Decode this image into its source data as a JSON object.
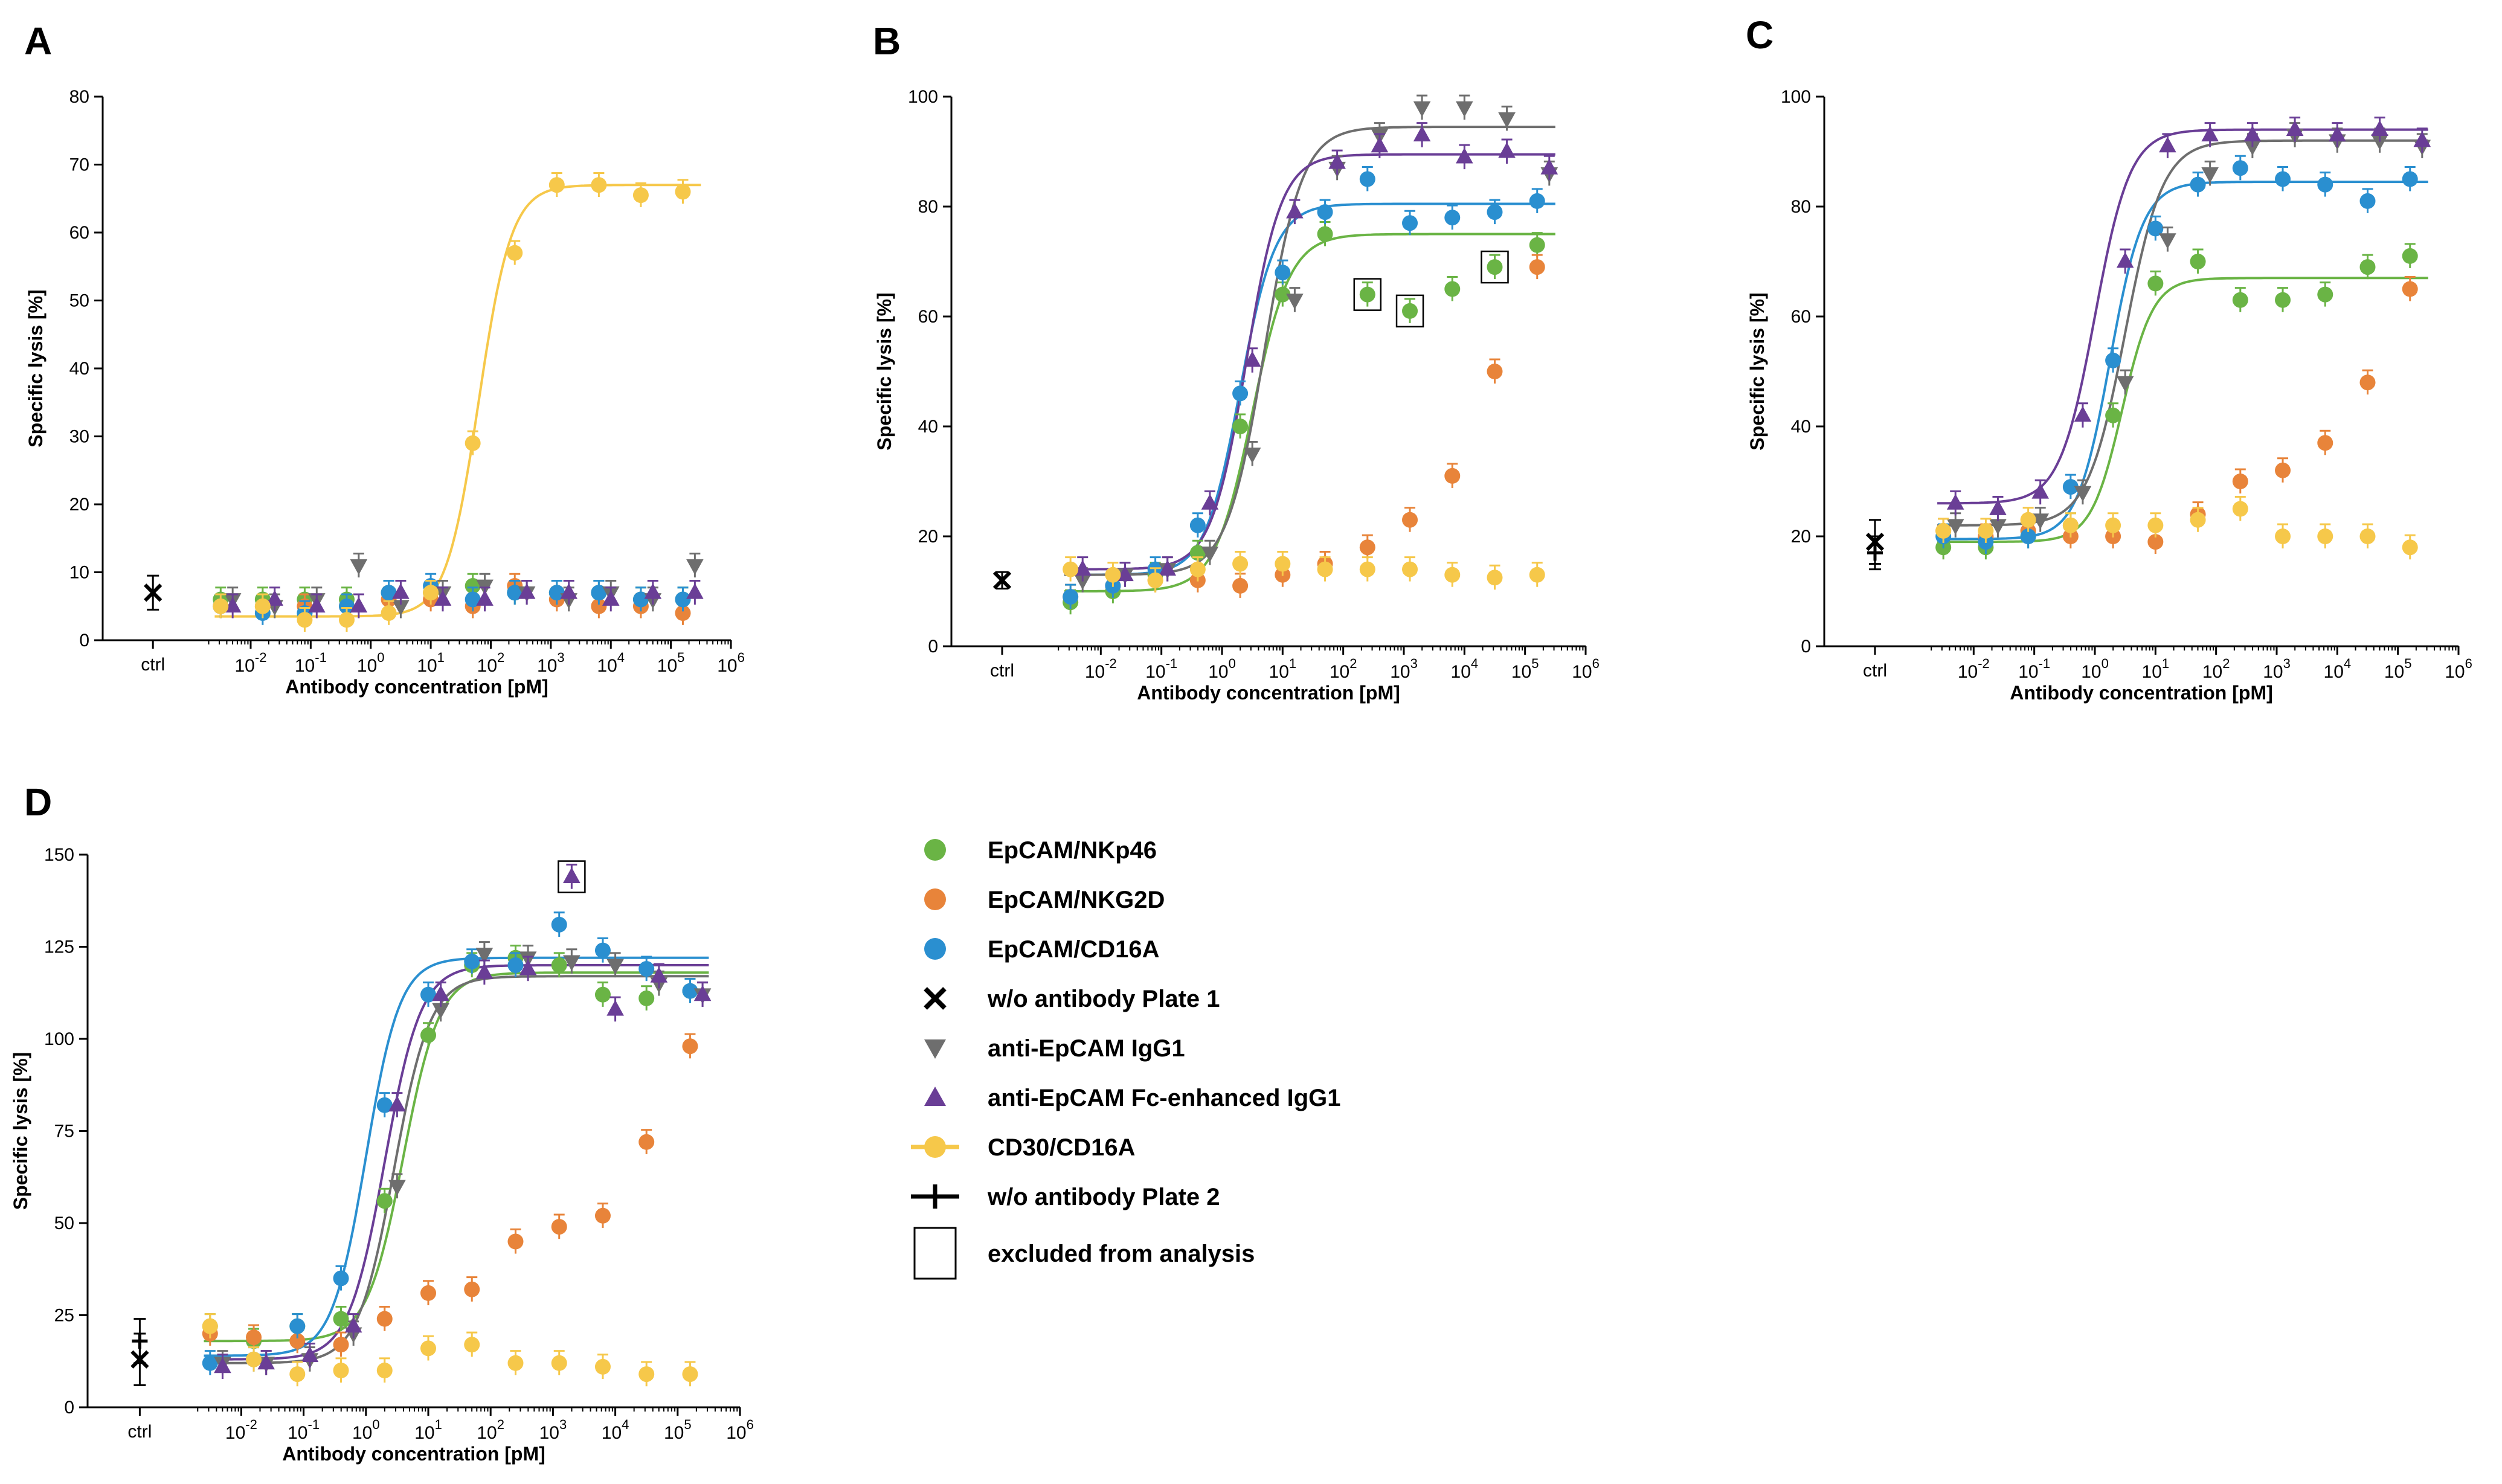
{
  "colors": {
    "nkp46": "#6ab445",
    "nkg2d": "#e8843a",
    "cd16a": "#2a8fd0",
    "igg1": "#6e6e6e",
    "fcenh": "#6a3e96",
    "cd30": "#f6c84a",
    "black": "#000000"
  },
  "legend": [
    {
      "label": "EpCAM/NKp46",
      "marker": "circle",
      "color": "nkp46"
    },
    {
      "label": "EpCAM/NKG2D",
      "marker": "circle",
      "color": "nkg2d"
    },
    {
      "label": "EpCAM/CD16A",
      "marker": "circle",
      "color": "cd16a"
    },
    {
      "label": "w/o antibody Plate 1",
      "marker": "x",
      "color": "black"
    },
    {
      "label": "anti-EpCAM IgG1",
      "marker": "tri-down",
      "color": "igg1"
    },
    {
      "label": "anti-EpCAM Fc-enhanced IgG1",
      "marker": "tri-up",
      "color": "fcenh"
    },
    {
      "label": "CD30/CD16A",
      "marker": "line-circle",
      "color": "cd30"
    },
    {
      "label": "w/o antibody Plate 2",
      "marker": "line-plus",
      "color": "black"
    },
    {
      "label": "excluded from analysis",
      "marker": "box",
      "color": "black"
    }
  ],
  "chart_data": [
    {
      "panel": "A",
      "type": "scatter",
      "xlabel": "Antibody concentration [pM]",
      "ylabel": "Specific lysis [%]",
      "ylim": [
        0,
        80
      ],
      "yticks": [
        0,
        10,
        20,
        30,
        40,
        50,
        60,
        70,
        80
      ],
      "xlim_log": [
        -3,
        6
      ],
      "ctrl_label": "ctrl",
      "ctrl": [
        {
          "marker": "x",
          "color": "black",
          "y": 7,
          "err": 2.5
        }
      ],
      "fits": [
        {
          "color": "cd30",
          "bottom": 3.5,
          "top": 67,
          "logec50": 1.8,
          "hill": 1.6
        }
      ],
      "series": [
        {
          "name": "EpCAM/NKp46",
          "marker": "circle",
          "color": "nkp46",
          "x": [
            -2.5,
            -1.8,
            -1.1,
            -0.4,
            0.3,
            1.0,
            1.7,
            2.4,
            3.1,
            3.8,
            4.5,
            5.2
          ],
          "y": [
            6,
            6,
            6,
            6,
            7,
            7,
            8,
            7,
            7,
            7,
            6,
            6
          ]
        },
        {
          "name": "EpCAM/NKG2D",
          "marker": "circle",
          "color": "nkg2d",
          "x": [
            -2.5,
            -1.8,
            -1.1,
            -0.4,
            0.3,
            1.0,
            1.7,
            2.4,
            3.1,
            3.8,
            4.5,
            5.2
          ],
          "y": [
            5,
            5,
            5,
            5,
            6,
            6,
            5,
            8,
            6,
            5,
            5,
            4
          ]
        },
        {
          "name": "EpCAM/CD16A",
          "marker": "circle",
          "color": "cd16a",
          "x": [
            -2.5,
            -1.8,
            -1.1,
            -0.4,
            0.3,
            1.0,
            1.7,
            2.4,
            3.1,
            3.8,
            4.5,
            5.2
          ],
          "y": [
            5,
            4,
            4,
            5,
            7,
            8,
            6,
            7,
            7,
            7,
            6,
            6
          ]
        },
        {
          "name": "anti-EpCAM IgG1",
          "marker": "tri-down",
          "color": "igg1",
          "x": [
            -2.3,
            -1.6,
            -0.9,
            -0.2,
            0.5,
            1.2,
            1.9,
            2.6,
            3.3,
            4.0,
            4.7,
            5.4
          ],
          "y": [
            6,
            5,
            6,
            11,
            5,
            7,
            8,
            7,
            6,
            7,
            6,
            11
          ]
        },
        {
          "name": "anti-EpCAM Fc-enhanced IgG1",
          "marker": "tri-up",
          "color": "fcenh",
          "x": [
            -2.3,
            -1.6,
            -0.9,
            -0.2,
            0.5,
            1.2,
            1.9,
            2.6,
            3.3,
            4.0,
            4.7,
            5.4
          ],
          "y": [
            5,
            6,
            5,
            5,
            7,
            6,
            6,
            7,
            7,
            6,
            7,
            7
          ]
        },
        {
          "name": "CD30/CD16A",
          "marker": "circle",
          "color": "cd30",
          "x": [
            -2.5,
            -1.8,
            -1.1,
            -0.4,
            0.3,
            1.0,
            1.7,
            2.4,
            3.1,
            3.8,
            4.5,
            5.2
          ],
          "y": [
            5,
            5,
            3,
            3,
            4,
            7,
            29,
            57,
            67,
            67,
            65.5,
            66
          ]
        }
      ],
      "excluded": []
    },
    {
      "panel": "B",
      "type": "scatter",
      "xlabel": "Antibody concentration [pM]",
      "ylabel": "Specific lysis [%]",
      "ylim": [
        0,
        100
      ],
      "yticks": [
        0,
        20,
        40,
        60,
        80,
        100
      ],
      "xlim_log": [
        -3,
        6
      ],
      "ctrl_label": "ctrl",
      "ctrl": [
        {
          "marker": "x",
          "color": "black",
          "y": 12,
          "err": 1.5
        }
      ],
      "fits": [
        {
          "color": "nkp46",
          "bottom": 10,
          "top": 75,
          "logec50": 0.5,
          "hill": 1.4
        },
        {
          "color": "cd16a",
          "bottom": 13,
          "top": 80.5,
          "logec50": 0.3,
          "hill": 1.5
        },
        {
          "color": "igg1",
          "bottom": 13,
          "top": 94.5,
          "logec50": 0.7,
          "hill": 1.4
        },
        {
          "color": "fcenh",
          "bottom": 14,
          "top": 89.5,
          "logec50": 0.4,
          "hill": 1.5
        }
      ],
      "series": [
        {
          "name": "EpCAM/NKp46",
          "marker": "circle",
          "color": "nkp46",
          "x": [
            -2.5,
            -1.8,
            -1.1,
            -0.4,
            0.3,
            1.0,
            1.7,
            2.4,
            3.1,
            3.8,
            4.5,
            5.2
          ],
          "y": [
            8,
            10,
            13,
            17,
            40,
            64,
            75,
            64,
            61,
            65,
            69,
            73
          ]
        },
        {
          "name": "EpCAM/NKG2D",
          "marker": "circle",
          "color": "nkg2d",
          "x": [
            -2.5,
            -1.8,
            -1.1,
            -0.4,
            0.3,
            1.0,
            1.7,
            2.4,
            3.1,
            3.8,
            4.5,
            5.2
          ],
          "y": [
            9,
            11,
            12,
            12,
            11,
            13,
            15,
            18,
            23,
            31,
            50,
            69
          ]
        },
        {
          "name": "EpCAM/CD16A",
          "marker": "circle",
          "color": "cd16a",
          "x": [
            -2.5,
            -1.8,
            -1.1,
            -0.4,
            0.3,
            1.0,
            1.7,
            2.4,
            3.1,
            3.8,
            4.5,
            5.2
          ],
          "y": [
            9,
            11,
            14,
            22,
            46,
            68,
            79,
            85,
            77,
            78,
            79,
            81
          ]
        },
        {
          "name": "anti-EpCAM IgG1",
          "marker": "tri-down",
          "color": "igg1",
          "x": [
            -2.3,
            -1.6,
            -0.9,
            -0.2,
            0.5,
            1.2,
            1.9,
            2.6,
            3.3,
            4.0,
            4.7,
            5.4
          ],
          "y": [
            12,
            13,
            14,
            17,
            35,
            63,
            87,
            93,
            98,
            98,
            96,
            86
          ]
        },
        {
          "name": "anti-EpCAM Fc-enhanced IgG1",
          "marker": "tri-up",
          "color": "fcenh",
          "x": [
            -2.3,
            -1.6,
            -0.9,
            -0.2,
            0.5,
            1.2,
            1.9,
            2.6,
            3.3,
            4.0,
            4.7,
            5.4
          ],
          "y": [
            14,
            13,
            14,
            26,
            52,
            79,
            88,
            91,
            93,
            89,
            90,
            87
          ]
        },
        {
          "name": "CD30/CD16A",
          "marker": "circle",
          "color": "cd30",
          "x": [
            -2.5,
            -1.8,
            -1.1,
            -0.4,
            0.3,
            1.0,
            1.7,
            2.4,
            3.1,
            3.8,
            4.5,
            5.2
          ],
          "y": [
            14,
            13,
            12,
            14,
            15,
            15,
            14,
            14,
            14,
            13,
            12.5,
            13
          ]
        }
      ],
      "excluded": [
        {
          "x": 2.4,
          "y": 64,
          "color": "nkp46"
        },
        {
          "x": 3.1,
          "y": 61,
          "color": "nkp46"
        },
        {
          "x": 4.5,
          "y": 69,
          "color": "nkp46"
        }
      ]
    },
    {
      "panel": "C",
      "type": "scatter",
      "xlabel": "Antibody concentration [pM]",
      "ylabel": "Specific lysis [%]",
      "ylim": [
        0,
        100
      ],
      "yticks": [
        0,
        20,
        40,
        60,
        80,
        100
      ],
      "xlim_log": [
        -3,
        6
      ],
      "ctrl_label": "ctrl",
      "ctrl": [
        {
          "marker": "x",
          "color": "black",
          "y": 19,
          "err": 4
        },
        {
          "marker": "plus",
          "color": "black",
          "y": 17,
          "err": 3
        }
      ],
      "fits": [
        {
          "color": "nkp46",
          "bottom": 19,
          "top": 67,
          "logec50": 0.45,
          "hill": 1.7
        },
        {
          "color": "cd16a",
          "bottom": 19.5,
          "top": 84.5,
          "logec50": 0.25,
          "hill": 1.6
        },
        {
          "color": "igg1",
          "bottom": 22,
          "top": 92,
          "logec50": 0.5,
          "hill": 1.4
        },
        {
          "color": "fcenh",
          "bottom": 26,
          "top": 94,
          "logec50": 0.0,
          "hill": 1.5
        }
      ],
      "series": [
        {
          "name": "EpCAM/NKp46",
          "marker": "circle",
          "color": "nkp46",
          "x": [
            -2.5,
            -1.8,
            -1.1,
            -0.4,
            0.3,
            1.0,
            1.7,
            2.4,
            3.1,
            3.8,
            4.5,
            5.2
          ],
          "y": [
            18,
            18,
            20,
            22,
            42,
            66,
            70,
            63,
            63,
            64,
            69,
            71
          ]
        },
        {
          "name": "EpCAM/NKG2D",
          "marker": "circle",
          "color": "nkg2d",
          "x": [
            -2.5,
            -1.8,
            -1.1,
            -0.4,
            0.3,
            1.0,
            1.7,
            2.4,
            3.1,
            3.8,
            4.5,
            5.2
          ],
          "y": [
            21,
            20,
            21,
            20,
            20,
            19,
            24,
            30,
            32,
            37,
            48,
            65
          ]
        },
        {
          "name": "EpCAM/CD16A",
          "marker": "circle",
          "color": "cd16a",
          "x": [
            -2.5,
            -1.8,
            -1.1,
            -0.4,
            0.3,
            1.0,
            1.7,
            2.4,
            3.1,
            3.8,
            4.5,
            5.2
          ],
          "y": [
            20,
            19,
            20,
            29,
            52,
            76,
            84,
            87,
            85,
            84,
            81,
            85
          ]
        },
        {
          "name": "anti-EpCAM IgG1",
          "marker": "tri-down",
          "color": "igg1",
          "x": [
            -2.3,
            -1.6,
            -0.9,
            -0.2,
            0.5,
            1.2,
            1.9,
            2.6,
            3.3,
            4.0,
            4.7,
            5.4
          ],
          "y": [
            22,
            22,
            23,
            28,
            48,
            74,
            86,
            91,
            93,
            92,
            92,
            91
          ]
        },
        {
          "name": "anti-EpCAM Fc-enhanced IgG1",
          "marker": "tri-up",
          "color": "fcenh",
          "x": [
            -2.3,
            -1.6,
            -0.9,
            -0.2,
            0.5,
            1.2,
            1.9,
            2.6,
            3.3,
            4.0,
            4.7,
            5.4
          ],
          "y": [
            26,
            25,
            28,
            42,
            70,
            91,
            93,
            93,
            94,
            93,
            94,
            92
          ]
        },
        {
          "name": "CD30/CD16A",
          "marker": "circle",
          "color": "cd30",
          "x": [
            -2.5,
            -1.8,
            -1.1,
            -0.4,
            0.3,
            1.0,
            1.7,
            2.4,
            3.1,
            3.8,
            4.5,
            5.2
          ],
          "y": [
            21,
            21,
            23,
            22,
            22,
            22,
            23,
            25,
            20,
            20,
            20,
            18
          ]
        }
      ],
      "excluded": []
    },
    {
      "panel": "D",
      "type": "scatter",
      "xlabel": "Antibody concentration [pM]",
      "ylabel": "Specific lysis [%]",
      "ylim": [
        0,
        150
      ],
      "yticks": [
        0,
        25,
        50,
        75,
        100,
        125,
        150
      ],
      "xlim_log": [
        -3,
        6
      ],
      "ctrl_label": "ctrl",
      "ctrl": [
        {
          "marker": "x",
          "color": "black",
          "y": 13,
          "err": 7
        },
        {
          "marker": "plus",
          "color": "black",
          "y": 18,
          "err": 6
        }
      ],
      "fits": [
        {
          "color": "nkp46",
          "bottom": 18,
          "top": 118,
          "logec50": 0.6,
          "hill": 1.5
        },
        {
          "color": "cd16a",
          "bottom": 14,
          "top": 122,
          "logec50": 0.0,
          "hill": 1.6
        },
        {
          "color": "igg1",
          "bottom": 12,
          "top": 117,
          "logec50": 0.45,
          "hill": 1.5
        },
        {
          "color": "fcenh",
          "bottom": 13,
          "top": 120,
          "logec50": 0.3,
          "hill": 1.5
        }
      ],
      "series": [
        {
          "name": "EpCAM/NKp46",
          "marker": "circle",
          "color": "nkp46",
          "x": [
            -2.5,
            -1.8,
            -1.1,
            -0.4,
            0.3,
            1.0,
            1.7,
            2.4,
            3.1,
            3.8,
            4.5,
            5.2
          ],
          "y": [
            22,
            18,
            22,
            24,
            56,
            101,
            120,
            122,
            120,
            112,
            111,
            113
          ]
        },
        {
          "name": "EpCAM/NKG2D",
          "marker": "circle",
          "color": "nkg2d",
          "x": [
            -2.5,
            -1.8,
            -1.1,
            -0.4,
            0.3,
            1.0,
            1.7,
            2.4,
            3.1,
            3.8,
            4.5,
            5.2
          ],
          "y": [
            20,
            19,
            18,
            17,
            24,
            31,
            32,
            45,
            49,
            52,
            72,
            98
          ]
        },
        {
          "name": "EpCAM/CD16A",
          "marker": "circle",
          "color": "cd16a",
          "x": [
            -2.5,
            -1.8,
            -1.1,
            -0.4,
            0.3,
            1.0,
            1.7,
            2.4,
            3.1,
            3.8,
            4.5,
            5.2
          ],
          "y": [
            12,
            13,
            22,
            35,
            82,
            112,
            121,
            120,
            131,
            124,
            119,
            113
          ]
        },
        {
          "name": "anti-EpCAM IgG1",
          "marker": "tri-down",
          "color": "igg1",
          "x": [
            -2.3,
            -1.6,
            -0.9,
            -0.2,
            0.5,
            1.2,
            1.9,
            2.6,
            3.3,
            4.0,
            4.7,
            5.4
          ],
          "y": [
            12,
            12,
            13,
            20,
            60,
            108,
            123,
            122,
            121,
            120,
            115,
            112
          ]
        },
        {
          "name": "anti-EpCAM Fc-enhanced IgG1",
          "marker": "tri-up",
          "color": "fcenh",
          "x": [
            -2.3,
            -1.6,
            -0.9,
            -0.2,
            0.5,
            1.2,
            1.9,
            2.6,
            3.3,
            4.0,
            4.7,
            5.4
          ],
          "y": [
            11,
            12,
            14,
            22,
            82,
            112,
            118,
            119,
            144,
            108,
            117,
            112
          ]
        },
        {
          "name": "CD30/CD16A",
          "marker": "circle",
          "color": "cd30",
          "x": [
            -2.5,
            -1.8,
            -1.1,
            -0.4,
            0.3,
            1.0,
            1.7,
            2.4,
            3.1,
            3.8,
            4.5,
            5.2
          ],
          "y": [
            22,
            13,
            9,
            10,
            10,
            16,
            17,
            12,
            12,
            11,
            9,
            9
          ]
        }
      ],
      "excluded": [
        {
          "x": 3.3,
          "y": 144,
          "color": "fcenh"
        }
      ]
    }
  ]
}
